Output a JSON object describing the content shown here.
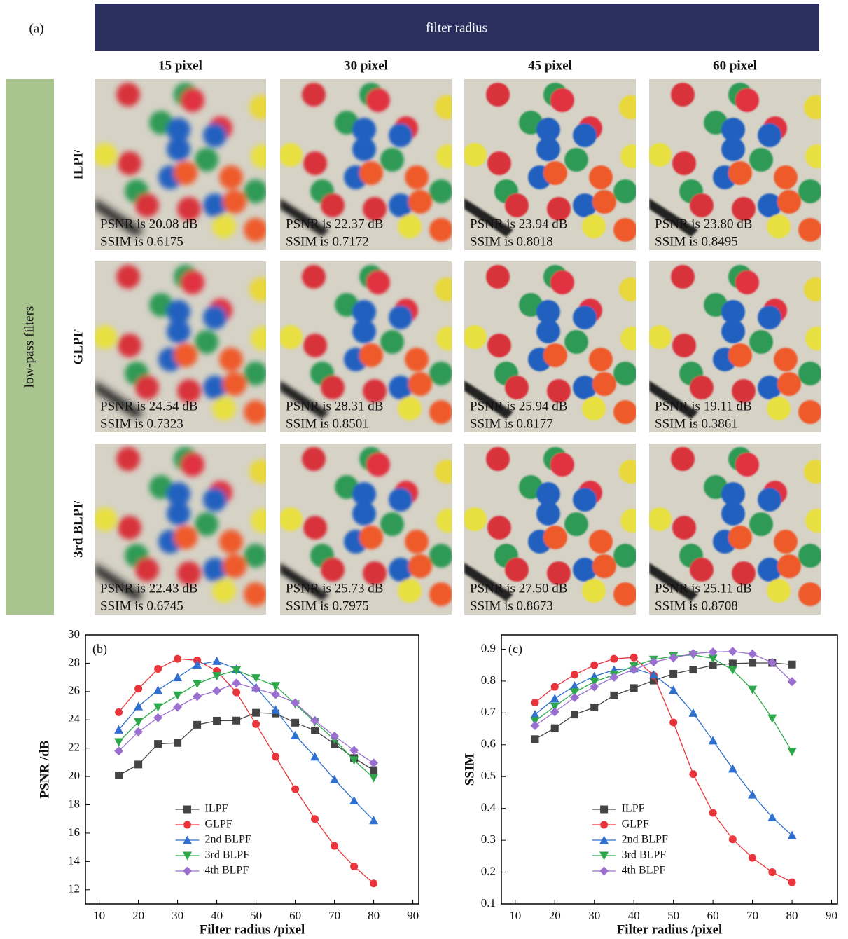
{
  "panel_a": {
    "label": "(a)",
    "header": "filter radius",
    "side_label": "low-pass filters",
    "columns": [
      "15 pixel",
      "30 pixel",
      "45 pixel",
      "60 pixel"
    ],
    "rows": [
      {
        "name": "ILPF",
        "cells": [
          {
            "psnr": "PSNR is 20.08 dB",
            "ssim": "SSIM is 0.6175"
          },
          {
            "psnr": "PSNR is 22.37 dB",
            "ssim": "SSIM is 0.7172"
          },
          {
            "psnr": "PSNR is 23.94 dB",
            "ssim": "SSIM is 0.8018"
          },
          {
            "psnr": "PSNR is 23.80 dB",
            "ssim": "SSIM is 0.8495"
          }
        ]
      },
      {
        "name": "GLPF",
        "cells": [
          {
            "psnr": "PSNR is 24.54 dB",
            "ssim": "SSIM is 0.7323"
          },
          {
            "psnr": "PSNR is 28.31 dB",
            "ssim": "SSIM is 0.8501"
          },
          {
            "psnr": "PSNR is 25.94 dB",
            "ssim": "SSIM is 0.8177"
          },
          {
            "psnr": "PSNR is 19.11 dB",
            "ssim": "SSIM is 0.3861"
          }
        ]
      },
      {
        "name": "3rd BLPF",
        "cells": [
          {
            "psnr": "PSNR is 22.43 dB",
            "ssim": "SSIM is 0.6745"
          },
          {
            "psnr": "PSNR is 25.73 dB",
            "ssim": "SSIM is 0.7975"
          },
          {
            "psnr": "PSNR is 27.50 dB",
            "ssim": "SSIM is 0.8673"
          },
          {
            "psnr": "PSNR is 25.11 dB",
            "ssim": "SSIM is 0.8708"
          }
        ]
      }
    ]
  },
  "chart_data": [
    {
      "type": "line",
      "label": "(b)",
      "x_label": "Filter radius /pixel",
      "y_label": "PSNR /dB",
      "x": [
        15,
        20,
        25,
        30,
        35,
        40,
        45,
        50,
        55,
        60,
        65,
        70,
        75,
        80
      ],
      "xlim": [
        6.5,
        91.5
      ],
      "xticks": [
        10,
        20,
        30,
        40,
        50,
        60,
        70,
        80,
        90
      ],
      "ylim": [
        11,
        30
      ],
      "yticks": [
        12,
        14,
        16,
        18,
        20,
        22,
        24,
        26,
        28,
        30
      ],
      "legend": "lower left",
      "series": [
        {
          "name": "ILPF",
          "color": "#444444",
          "marker": "square",
          "values": [
            20.08,
            20.85,
            22.3,
            22.37,
            23.65,
            23.94,
            23.95,
            24.5,
            24.45,
            23.8,
            23.25,
            22.3,
            21.3,
            20.45
          ]
        },
        {
          "name": "GLPF",
          "color": "#e8343a",
          "marker": "circle",
          "values": [
            24.54,
            26.2,
            27.6,
            28.31,
            28.2,
            27.45,
            25.94,
            23.7,
            21.4,
            19.11,
            17.0,
            15.1,
            13.65,
            12.45
          ]
        },
        {
          "name": "2nd BLPF",
          "color": "#2f6fcf",
          "marker": "triangle-up",
          "values": [
            23.3,
            24.95,
            26.1,
            27.0,
            27.9,
            28.15,
            27.6,
            26.3,
            24.7,
            22.9,
            21.4,
            19.8,
            18.3,
            16.9
          ]
        },
        {
          "name": "3rd BLPF",
          "color": "#2ca84a",
          "marker": "triangle-down",
          "values": [
            22.43,
            23.85,
            24.9,
            25.73,
            26.55,
            27.1,
            27.5,
            26.95,
            26.4,
            25.11,
            23.85,
            22.6,
            21.15,
            19.9
          ]
        },
        {
          "name": "4th BLPF",
          "color": "#9a6fd0",
          "marker": "diamond",
          "values": [
            21.8,
            23.15,
            24.15,
            24.9,
            25.65,
            26.05,
            26.6,
            26.2,
            25.8,
            25.2,
            23.95,
            22.85,
            21.85,
            20.95
          ]
        }
      ]
    },
    {
      "type": "line",
      "label": "(c)",
      "x_label": "Filter radius /pixel",
      "y_label": "SSIM",
      "x": [
        15,
        20,
        25,
        30,
        35,
        40,
        45,
        50,
        55,
        60,
        65,
        70,
        75,
        80
      ],
      "xlim": [
        6.5,
        91.5
      ],
      "xticks": [
        10,
        20,
        30,
        40,
        50,
        60,
        70,
        80,
        90
      ],
      "ylim": [
        0.1,
        0.945
      ],
      "yticks": [
        0.1,
        0.2,
        0.3,
        0.4,
        0.5,
        0.6,
        0.7,
        0.8,
        0.9
      ],
      "legend": "lower left",
      "series": [
        {
          "name": "ILPF",
          "color": "#444444",
          "marker": "square",
          "values": [
            0.6175,
            0.652,
            0.695,
            0.7172,
            0.755,
            0.778,
            0.8018,
            0.823,
            0.836,
            0.8495,
            0.855,
            0.857,
            0.857,
            0.852
          ]
        },
        {
          "name": "GLPF",
          "color": "#e8343a",
          "marker": "circle",
          "values": [
            0.7323,
            0.782,
            0.82,
            0.8501,
            0.87,
            0.874,
            0.8177,
            0.67,
            0.508,
            0.3861,
            0.303,
            0.245,
            0.2,
            0.168
          ]
        },
        {
          "name": "2nd BLPF",
          "color": "#2f6fcf",
          "marker": "triangle-up",
          "values": [
            0.695,
            0.745,
            0.785,
            0.815,
            0.835,
            0.84,
            0.82,
            0.772,
            0.7,
            0.613,
            0.525,
            0.443,
            0.372,
            0.315
          ]
        },
        {
          "name": "3rd BLPF",
          "color": "#2ca84a",
          "marker": "triangle-down",
          "values": [
            0.6745,
            0.72,
            0.765,
            0.7975,
            0.82,
            0.848,
            0.8673,
            0.878,
            0.882,
            0.8708,
            0.835,
            0.773,
            0.683,
            0.578
          ]
        },
        {
          "name": "4th BLPF",
          "color": "#9a6fd0",
          "marker": "diamond",
          "values": [
            0.66,
            0.703,
            0.748,
            0.782,
            0.812,
            0.836,
            0.86,
            0.873,
            0.886,
            0.891,
            0.893,
            0.885,
            0.858,
            0.798
          ]
        }
      ]
    }
  ]
}
